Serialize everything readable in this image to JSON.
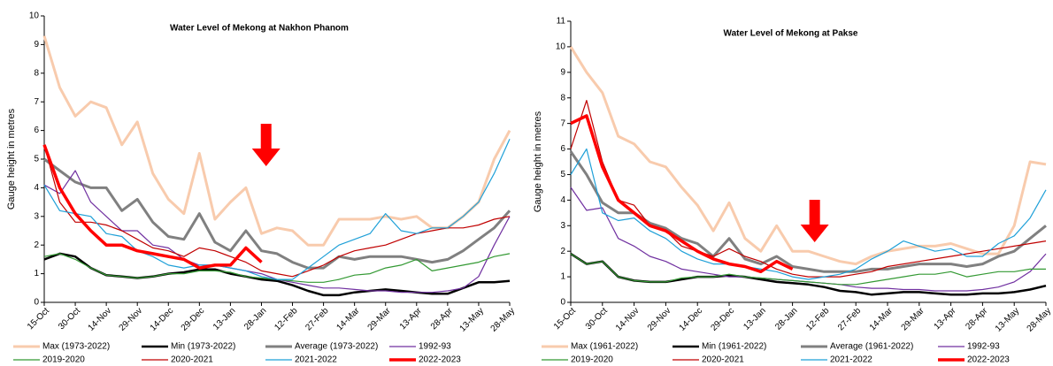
{
  "chart_data": [
    {
      "type": "line",
      "title": "Water Level of Mekong at Nakhon Phanom",
      "y_label": "Gauge height in metres",
      "categories": [
        "15-Oct",
        null,
        "30-Oct",
        null,
        "14-Nov",
        null,
        "29-Nov",
        null,
        "14-Dec",
        null,
        "29-Dec",
        null,
        "13-Jan",
        null,
        "28-Jan",
        null,
        "12-Feb",
        null,
        "27-Feb",
        null,
        "14-Mar",
        null,
        "29-Mar",
        null,
        "13-Apr",
        null,
        "28-Apr",
        null,
        "13-May",
        null,
        "28-May"
      ],
      "ylim": [
        0,
        10
      ],
      "yticks": [
        0,
        1,
        2,
        3,
        4,
        5,
        6,
        7,
        8,
        9,
        10
      ],
      "series": [
        {
          "name": "Max (1973-2022)",
          "color": "#f8cbad",
          "values": [
            9.3,
            7.5,
            6.5,
            7.0,
            6.8,
            5.5,
            6.3,
            4.5,
            3.6,
            3.1,
            5.2,
            2.9,
            3.5,
            4.0,
            2.4,
            2.6,
            2.5,
            2.0,
            2.0,
            2.9,
            2.9,
            2.9,
            3.0,
            2.9,
            3.0,
            2.6,
            2.6,
            3.0,
            3.5,
            5.0,
            6.0
          ]
        },
        {
          "name": "Min (1973-2022)",
          "color": "#000000",
          "values": [
            1.5,
            1.7,
            1.6,
            1.2,
            0.95,
            0.9,
            0.85,
            0.9,
            1.0,
            1.05,
            1.15,
            1.15,
            1.0,
            0.9,
            0.8,
            0.75,
            0.6,
            0.4,
            0.25,
            0.25,
            0.35,
            0.4,
            0.45,
            0.4,
            0.35,
            0.3,
            0.3,
            0.5,
            0.7,
            0.7,
            0.75
          ]
        },
        {
          "name": "Average (1973-2022)",
          "color": "#808080",
          "values": [
            5.0,
            4.6,
            4.2,
            4.0,
            4.0,
            3.2,
            3.6,
            2.8,
            2.3,
            2.2,
            3.1,
            2.1,
            1.8,
            2.5,
            1.8,
            1.7,
            1.4,
            1.2,
            1.2,
            1.6,
            1.5,
            1.6,
            1.6,
            1.6,
            1.5,
            1.4,
            1.5,
            1.8,
            2.2,
            2.6,
            3.2
          ]
        },
        {
          "name": "1992-93",
          "color": "#7030a0",
          "values": [
            4.1,
            3.8,
            4.6,
            3.5,
            3.0,
            2.5,
            2.5,
            2.0,
            1.9,
            1.5,
            1.3,
            1.3,
            1.2,
            1.1,
            1.0,
            0.8,
            0.7,
            0.6,
            0.5,
            0.5,
            0.45,
            0.4,
            0.4,
            0.35,
            0.35,
            0.35,
            0.4,
            0.5,
            0.9,
            2.0,
            3.0
          ]
        },
        {
          "name": "2019-2020",
          "color": "#339933",
          "values": [
            1.6,
            1.7,
            1.5,
            1.2,
            0.95,
            0.9,
            0.85,
            0.9,
            1.0,
            1.0,
            1.1,
            1.1,
            1.05,
            0.9,
            0.85,
            0.8,
            0.75,
            0.7,
            0.7,
            0.8,
            0.95,
            1.0,
            1.2,
            1.3,
            1.5,
            1.1,
            1.2,
            1.3,
            1.4,
            1.6,
            1.7
          ]
        },
        {
          "name": "2020-2021",
          "color": "#c00000",
          "values": [
            5.5,
            3.5,
            2.8,
            2.8,
            2.7,
            2.5,
            2.2,
            1.9,
            1.8,
            1.6,
            1.9,
            1.8,
            1.6,
            1.4,
            1.1,
            1.0,
            0.9,
            1.1,
            1.3,
            1.6,
            1.8,
            1.9,
            2.0,
            2.2,
            2.4,
            2.5,
            2.6,
            2.6,
            2.7,
            2.9,
            3.0
          ]
        },
        {
          "name": "2021-2022",
          "color": "#1fa0d8",
          "values": [
            4.1,
            3.2,
            3.1,
            3.0,
            2.4,
            2.3,
            1.8,
            1.6,
            1.3,
            1.2,
            1.3,
            1.3,
            1.2,
            1.1,
            0.9,
            0.8,
            0.8,
            1.2,
            1.6,
            2.0,
            2.2,
            2.4,
            3.1,
            2.5,
            2.4,
            2.6,
            2.6,
            3.0,
            3.5,
            4.5,
            5.7
          ]
        },
        {
          "name": "2022-2023",
          "color": "#ff0000",
          "values": [
            5.5,
            4.0,
            3.1,
            2.5,
            2.0,
            2.0,
            1.8,
            1.7,
            1.6,
            1.5,
            1.2,
            1.3,
            1.3,
            1.9,
            1.4,
            null,
            null,
            null,
            null,
            null,
            null,
            null,
            null,
            null,
            null,
            null,
            null,
            null,
            null,
            null,
            null
          ]
        }
      ]
    },
    {
      "type": "line",
      "title": "Water Level of Mekong at Pakse",
      "y_label": "Gauge height in metres",
      "categories": [
        "15-Oct",
        null,
        "30-Oct",
        null,
        "14-Nov",
        null,
        "29-Nov",
        null,
        "14-Dec",
        null,
        "29-Dec",
        null,
        "13-Jan",
        null,
        "28-Jan",
        null,
        "12-Feb",
        null,
        "27-Feb",
        null,
        "14-Mar",
        null,
        "29-Mar",
        null,
        "13-Apr",
        null,
        "28-Apr",
        null,
        "13-May",
        null,
        "28-May"
      ],
      "ylim": [
        0,
        11
      ],
      "yticks": [
        0,
        1,
        2,
        3,
        4,
        5,
        6,
        7,
        8,
        9,
        10,
        11
      ],
      "series": [
        {
          "name": "Max (1961-2022)",
          "color": "#f8cbad",
          "values": [
            10.0,
            9.0,
            8.2,
            6.5,
            6.2,
            5.5,
            5.3,
            4.5,
            3.8,
            2.8,
            3.9,
            2.5,
            2.0,
            3.0,
            2.0,
            2.0,
            1.8,
            1.6,
            1.5,
            1.8,
            2.0,
            2.1,
            2.2,
            2.2,
            2.3,
            2.1,
            1.9,
            1.9,
            3.0,
            5.5,
            5.4
          ]
        },
        {
          "name": "Min (1961-2022)",
          "color": "#000000",
          "values": [
            1.9,
            1.5,
            1.6,
            1.0,
            0.85,
            0.8,
            0.8,
            0.9,
            1.0,
            1.0,
            1.05,
            1.0,
            0.9,
            0.8,
            0.75,
            0.7,
            0.6,
            0.45,
            0.4,
            0.3,
            0.35,
            0.4,
            0.4,
            0.35,
            0.3,
            0.3,
            0.35,
            0.35,
            0.4,
            0.5,
            0.65
          ]
        },
        {
          "name": "Average (1961-2022)",
          "color": "#808080",
          "values": [
            5.9,
            5.0,
            3.9,
            3.5,
            3.5,
            3.1,
            2.9,
            2.5,
            2.3,
            1.8,
            2.5,
            1.7,
            1.5,
            1.8,
            1.4,
            1.3,
            1.2,
            1.2,
            1.2,
            1.3,
            1.3,
            1.4,
            1.5,
            1.5,
            1.5,
            1.4,
            1.5,
            1.8,
            2.0,
            2.5,
            3.0
          ]
        },
        {
          "name": "1992-93",
          "color": "#7030a0",
          "values": [
            4.5,
            3.6,
            3.7,
            2.5,
            2.2,
            1.8,
            1.6,
            1.3,
            1.2,
            1.1,
            1.0,
            1.0,
            0.95,
            0.9,
            0.85,
            0.8,
            0.75,
            0.7,
            0.6,
            0.55,
            0.55,
            0.5,
            0.5,
            0.45,
            0.45,
            0.45,
            0.5,
            0.6,
            0.8,
            1.2,
            1.9
          ]
        },
        {
          "name": "2019-2020",
          "color": "#339933",
          "values": [
            1.9,
            1.5,
            1.6,
            1.0,
            0.85,
            0.8,
            0.8,
            0.95,
            1.0,
            1.0,
            1.1,
            1.0,
            0.95,
            0.9,
            0.85,
            0.8,
            0.75,
            0.7,
            0.7,
            0.8,
            0.9,
            1.0,
            1.1,
            1.1,
            1.2,
            1.0,
            1.1,
            1.2,
            1.2,
            1.3,
            1.3
          ]
        },
        {
          "name": "2020-2021",
          "color": "#c00000",
          "values": [
            6.0,
            7.9,
            5.5,
            4.0,
            3.8,
            3.0,
            2.8,
            2.2,
            2.0,
            1.8,
            2.1,
            1.8,
            1.6,
            1.3,
            1.1,
            1.0,
            1.0,
            1.0,
            1.1,
            1.2,
            1.4,
            1.5,
            1.6,
            1.7,
            1.8,
            1.9,
            2.0,
            2.1,
            2.2,
            2.3,
            2.4
          ]
        },
        {
          "name": "2021-2022",
          "color": "#1fa0d8",
          "values": [
            5.0,
            6.0,
            3.5,
            3.2,
            3.3,
            2.8,
            2.5,
            2.0,
            1.7,
            1.5,
            1.5,
            1.4,
            1.3,
            1.2,
            1.0,
            0.9,
            1.0,
            1.1,
            1.3,
            1.7,
            2.0,
            2.4,
            2.2,
            2.0,
            2.1,
            1.8,
            1.8,
            2.3,
            2.6,
            3.3,
            4.4
          ]
        },
        {
          "name": "2022-2023",
          "color": "#ff0000",
          "values": [
            7.0,
            7.3,
            5.3,
            4.0,
            3.5,
            3.0,
            2.8,
            2.4,
            2.0,
            1.7,
            1.5,
            1.4,
            1.2,
            1.6,
            1.3,
            null,
            null,
            null,
            null,
            null,
            null,
            null,
            null,
            null,
            null,
            null,
            null,
            null,
            null,
            null,
            null
          ]
        }
      ]
    }
  ]
}
